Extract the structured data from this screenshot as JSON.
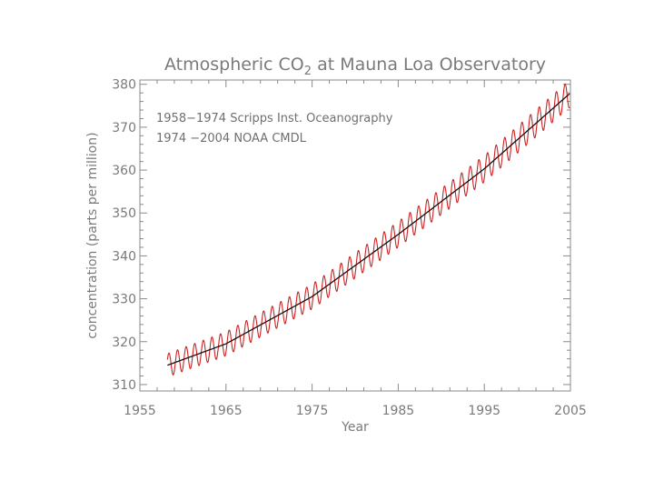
{
  "chart_data": {
    "type": "line",
    "title": {
      "prefix": "Atmospheric CO",
      "subscript": "2",
      "suffix": " at Mauna Loa Observatory"
    },
    "xlabel": "Year",
    "ylabel": "concentration (parts per million)",
    "xlim": [
      1955,
      2005
    ],
    "ylim": [
      308.5,
      381
    ],
    "xticks": [
      1955,
      1965,
      1975,
      1985,
      1995,
      2005
    ],
    "yticks": [
      310,
      320,
      330,
      340,
      350,
      360,
      370,
      380
    ],
    "grid": false,
    "annotations": [
      "1958−1974  Scripps Inst. Oceanography",
      "1974 −2004  NOAA CMDL"
    ],
    "series": [
      {
        "role": "monthly",
        "color": "#cc2222",
        "x_range": [
          1958.2,
          2004.9
        ],
        "samples_per_year": 36,
        "trend_anchors": {
          "x": [
            1958.2,
            1965,
            1975,
            1985,
            1995,
            2004.9
          ],
          "y": [
            314.5,
            319.5,
            330.5,
            345.0,
            360.3,
            377.8
          ]
        },
        "seasonal_amplitude": 3.2
      },
      {
        "role": "trend",
        "color": "#111111",
        "x_range": [
          1958.2,
          2004.9
        ],
        "samples_per_year": 12,
        "trend_anchors": {
          "x": [
            1958.2,
            1965,
            1975,
            1985,
            1995,
            2004.9
          ],
          "y": [
            314.5,
            319.5,
            330.5,
            345.0,
            360.3,
            377.8
          ]
        }
      }
    ]
  }
}
